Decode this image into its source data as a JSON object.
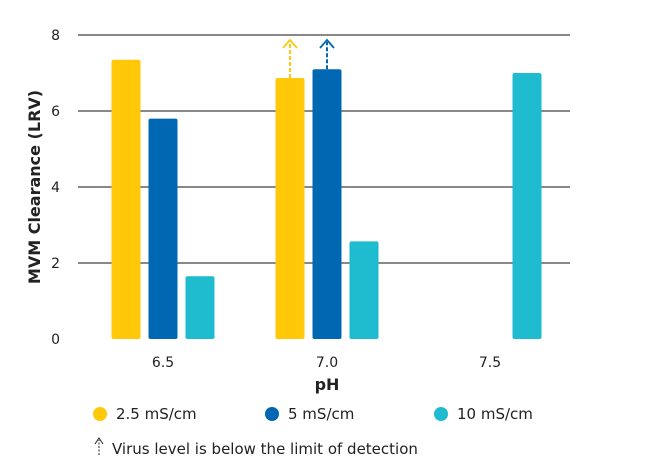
{
  "chart_data": {
    "type": "bar",
    "xlabel": "pH",
    "ylabel": "MVM Clearance (LRV)",
    "ylim": [
      0,
      8
    ],
    "yticks": [
      "0",
      "2",
      "4",
      "6",
      "8"
    ],
    "categories": [
      "6.5",
      "7.0",
      "7.5"
    ],
    "grid": true,
    "legend_placement": "bottom",
    "series": [
      {
        "name": "2.5 mS/cm",
        "color": "#FFC90A",
        "values": [
          7.35,
          6.87,
          null
        ],
        "below_detection_limit": [
          false,
          true,
          false
        ]
      },
      {
        "name": "5 mS/cm",
        "color": "#0068B3",
        "values": [
          5.8,
          7.1,
          null
        ],
        "below_detection_limit": [
          false,
          true,
          false
        ]
      },
      {
        "name": "10 mS/cm",
        "color": "#1FBCCF",
        "values": [
          1.65,
          2.57,
          7.0
        ],
        "below_detection_limit": [
          false,
          false,
          false
        ]
      }
    ],
    "footnote": {
      "icon": "dashed-up-arrow-icon",
      "text": "Virus level is below the limit of detection"
    }
  }
}
